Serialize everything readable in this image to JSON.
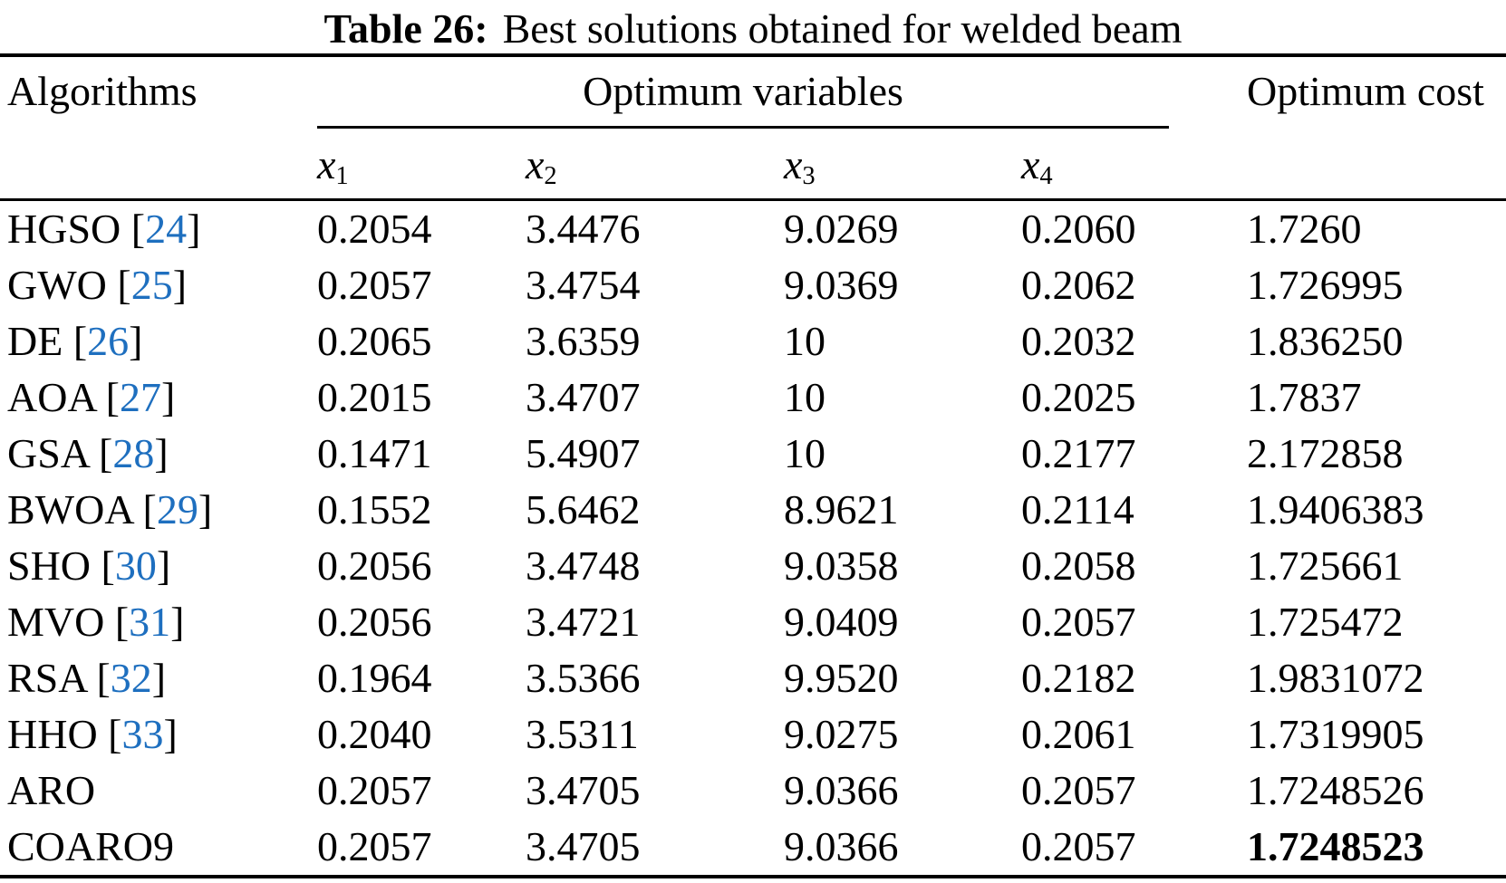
{
  "caption": {
    "label": "Table 26:",
    "text": "Best solutions obtained for welded beam"
  },
  "header": {
    "algorithms": "Algorithms",
    "optimum_variables": "Optimum variables",
    "optimum_cost": "Optimum cost",
    "variables": [
      {
        "base": "x",
        "sub": "1"
      },
      {
        "base": "x",
        "sub": "2"
      },
      {
        "base": "x",
        "sub": "3"
      },
      {
        "base": "x",
        "sub": "4"
      }
    ]
  },
  "colors": {
    "reference_blue": "#1e6fbf",
    "text": "#000000",
    "background": "#ffffff"
  },
  "rows": [
    {
      "name": "HGSO",
      "ref_open": " [",
      "ref": "24",
      "ref_close": "]",
      "x1": "0.2054",
      "x2": "3.4476",
      "x3": "9.0269",
      "x4": "0.2060",
      "cost": "1.7260"
    },
    {
      "name": "GWO",
      "ref_open": " [",
      "ref": "25",
      "ref_close": "]",
      "x1": "0.2057",
      "x2": "3.4754",
      "x3": "9.0369",
      "x4": "0.2062",
      "cost": "1.726995"
    },
    {
      "name": "DE",
      "ref_open": " [",
      "ref": "26",
      "ref_close": "]",
      "x1": "0.2065",
      "x2": "3.6359",
      "x3": "10",
      "x4": "0.2032",
      "cost": "1.836250"
    },
    {
      "name": "AOA",
      "ref_open": " [",
      "ref": "27",
      "ref_close": "]",
      "x1": "0.2015",
      "x2": "3.4707",
      "x3": "10",
      "x4": "0.2025",
      "cost": "1.7837"
    },
    {
      "name": "GSA",
      "ref_open": " [",
      "ref": "28",
      "ref_close": "]",
      "x1": "0.1471",
      "x2": "5.4907",
      "x3": "10",
      "x4": "0.2177",
      "cost": "2.172858"
    },
    {
      "name": "BWOA",
      "ref_open": " [",
      "ref": "29",
      "ref_close": "]",
      "x1": "0.1552",
      "x2": "5.6462",
      "x3": "8.9621",
      "x4": "0.2114",
      "cost": "1.9406383"
    },
    {
      "name": "SHO",
      "ref_open": " [",
      "ref": "30",
      "ref_close": "]",
      "x1": "0.2056",
      "x2": "3.4748",
      "x3": "9.0358",
      "x4": "0.2058",
      "cost": "1.725661"
    },
    {
      "name": "MVO",
      "ref_open": " [",
      "ref": "31",
      "ref_close": "]",
      "x1": "0.2056",
      "x2": "3.4721",
      "x3": "9.0409",
      "x4": "0.2057",
      "cost": "1.725472"
    },
    {
      "name": "RSA",
      "ref_open": " [",
      "ref": "32",
      "ref_close": "]",
      "x1": "0.1964",
      "x2": "3.5366",
      "x3": "9.9520",
      "x4": "0.2182",
      "cost": "1.9831072"
    },
    {
      "name": "HHO",
      "ref_open": " [",
      "ref": "33",
      "ref_close": "]",
      "x1": "0.2040",
      "x2": "3.5311",
      "x3": "9.0275",
      "x4": "0.2061",
      "cost": "1.7319905"
    },
    {
      "name": "ARO",
      "x1": "0.2057",
      "x2": "3.4705",
      "x3": "9.0366",
      "x4": "0.2057",
      "cost": "1.7248526"
    },
    {
      "name": "COARO9",
      "x1": "0.2057",
      "x2": "3.4705",
      "x3": "9.0366",
      "x4": "0.2057",
      "cost": "1.7248523"
    }
  ]
}
